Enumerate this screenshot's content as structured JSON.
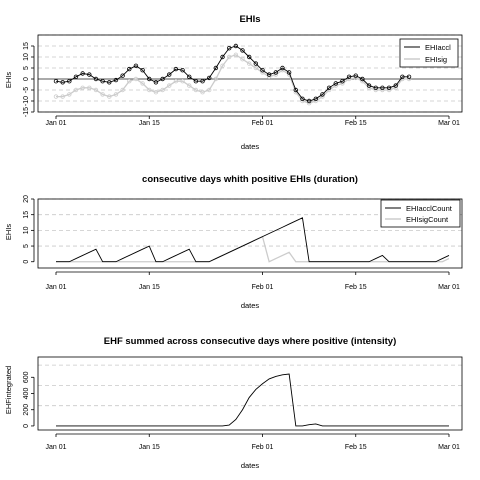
{
  "chart_data": [
    {
      "type": "line",
      "title": "EHIs",
      "xlabel": "dates",
      "ylabel": "EHIs",
      "x_start": "2012-12-31",
      "x_ticks": [
        "Jan 01",
        "Jan 15",
        "Feb 01",
        "Feb 15",
        "Mar 01"
      ],
      "x_tick_days": [
        0,
        14,
        31,
        45,
        59
      ],
      "ylim": [
        -15,
        20
      ],
      "y_ticks": [
        -15,
        -10,
        -5,
        0,
        5,
        10,
        15
      ],
      "gridlines_y": [
        -15,
        -10,
        -5,
        5,
        10,
        15,
        20
      ],
      "hline": 0,
      "points": true,
      "legend": "top-right",
      "series": [
        {
          "name": "EHIaccl",
          "color": "#000000",
          "values": [
            -1,
            -1.5,
            -1,
            1,
            2.5,
            2,
            0,
            -1,
            -1.5,
            -0.5,
            1.5,
            4.5,
            6,
            4,
            0,
            -1.5,
            0,
            2,
            4.5,
            4,
            1,
            -1,
            -1,
            0.5,
            5,
            10,
            14,
            15,
            13,
            10,
            7,
            4,
            2,
            3,
            5,
            3,
            -5,
            -9,
            -10,
            -9,
            -7,
            -4,
            -2,
            -1,
            1,
            1.5,
            0,
            -3,
            -4,
            -4,
            -4,
            -3,
            1,
            1
          ]
        },
        {
          "name": "EHIsig",
          "color": "#cccccc",
          "values": [
            -8,
            -8,
            -7,
            -5,
            -4,
            -4,
            -5,
            -7,
            -8,
            -7,
            -5,
            -1,
            0,
            -2,
            -5,
            -6,
            -5,
            -3,
            -1,
            -1,
            -3,
            -5,
            -6,
            -5,
            0,
            6,
            10,
            11,
            9,
            7,
            5,
            3,
            1,
            2,
            4,
            2,
            -6,
            -10,
            -11,
            -10,
            -8,
            -5,
            -3,
            -2,
            0,
            0.5,
            -1,
            -4,
            -5,
            -5,
            -5,
            -4,
            0,
            0
          ]
        }
      ]
    },
    {
      "type": "line",
      "title": "consecutive days whith positive EHIs (duration)",
      "xlabel": "dates",
      "ylabel": "EHIs",
      "x_ticks": [
        "Jan 01",
        "Jan 15",
        "Feb 01",
        "Feb 15",
        "Mar 01"
      ],
      "ylim": [
        -2,
        20
      ],
      "y_ticks": [
        0,
        5,
        10,
        15,
        20
      ],
      "gridlines_y": [
        5,
        10,
        15,
        20
      ],
      "legend": "top-right",
      "series": [
        {
          "name": "EHIacclCount",
          "color": "#000000",
          "values": [
            0,
            0,
            0,
            1,
            2,
            3,
            4,
            0,
            0,
            0,
            1,
            2,
            3,
            4,
            5,
            0,
            0,
            1,
            2,
            3,
            4,
            0,
            0,
            0,
            1,
            2,
            3,
            4,
            5,
            6,
            7,
            8,
            9,
            10,
            11,
            12,
            13,
            14,
            0,
            0,
            0,
            0,
            0,
            0,
            0,
            0,
            0,
            0,
            1,
            2,
            0,
            0,
            0,
            0,
            0,
            0,
            0,
            0,
            1,
            2
          ]
        },
        {
          "name": "EHIsigCount",
          "color": "#cccccc",
          "values": [
            0,
            0,
            0,
            0,
            0,
            0,
            0,
            0,
            0,
            0,
            0,
            0,
            0,
            0,
            0,
            0,
            0,
            0,
            0,
            0,
            0,
            0,
            0,
            0,
            1,
            2,
            3,
            4,
            5,
            6,
            7,
            8,
            0,
            1,
            2,
            3,
            0,
            0,
            0,
            0,
            0,
            0,
            0,
            0,
            0,
            0,
            0,
            0,
            0,
            0,
            0,
            0,
            0,
            0,
            0,
            0,
            0,
            0,
            0,
            1
          ]
        }
      ]
    },
    {
      "type": "line",
      "title": "EHF summed across consecutive days where positive (intensity)",
      "xlabel": "dates",
      "ylabel": "EHFintegrated",
      "x_ticks": [
        "Jan 01",
        "Jan 15",
        "Feb 01",
        "Feb 15",
        "Mar 01"
      ],
      "ylim": [
        -50,
        850
      ],
      "y_ticks": [
        0,
        200,
        400,
        600
      ],
      "gridlines_y": [
        250,
        500,
        750
      ],
      "series": [
        {
          "name": "",
          "color": "#000000",
          "values": [
            0,
            0,
            0,
            0,
            0,
            0,
            0,
            0,
            0,
            0,
            0,
            0,
            0,
            0,
            0,
            0,
            0,
            0,
            0,
            0,
            0,
            0,
            0,
            0,
            0,
            0,
            10,
            80,
            200,
            350,
            450,
            520,
            580,
            610,
            630,
            640,
            0,
            0,
            15,
            25,
            0,
            0,
            0,
            0,
            0,
            0,
            0,
            0,
            0,
            0,
            0,
            0,
            0,
            0,
            0,
            0,
            0,
            0,
            0,
            0
          ]
        }
      ]
    }
  ]
}
